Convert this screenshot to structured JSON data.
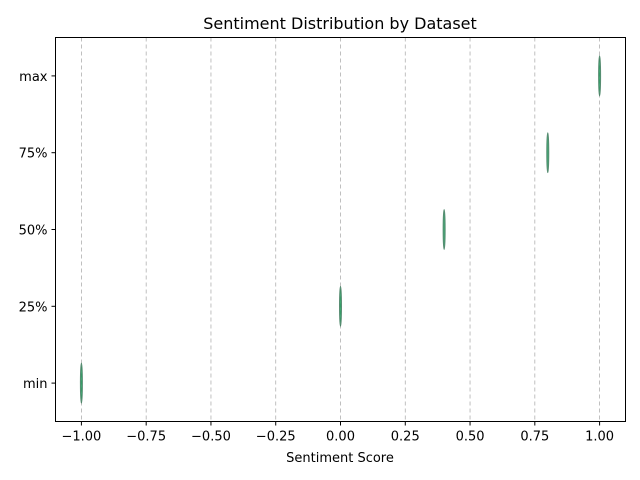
{
  "chart_data": {
    "type": "violin",
    "title": "Sentiment Distribution by Dataset",
    "xlabel": "Sentiment Score",
    "ylabel": "",
    "xlim": [
      -1.1,
      1.1
    ],
    "xticks": [
      -1.0,
      -0.75,
      -0.5,
      -0.25,
      0.0,
      0.25,
      0.5,
      0.75,
      1.0
    ],
    "xtick_labels": [
      "−1.00",
      "−0.75",
      "−0.50",
      "−0.25",
      "0.00",
      "0.25",
      "0.50",
      "0.75",
      "1.00"
    ],
    "categories": [
      "min",
      "25%",
      "50%",
      "75%",
      "max"
    ],
    "values": [
      -1.0,
      0.0,
      0.4,
      0.8,
      1.0
    ],
    "grid": "x-dashed",
    "color": "#2e8b57"
  }
}
